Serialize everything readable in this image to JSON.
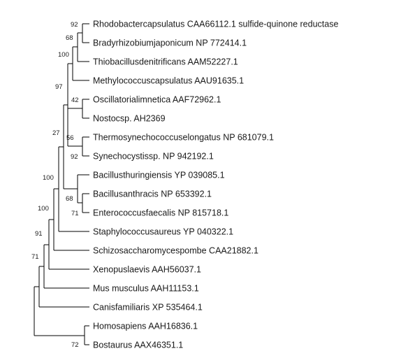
{
  "tree": {
    "taxa": [
      "Rhodobactercapsulatus CAA66112.1 sulfide-quinone reductase",
      "Bradyrhizobiumjaponicum NP 772414.1",
      "Thiobacillusdenitrificans AAM52227.1",
      "Methylococcuscapsulatus AAU91635.1",
      "Oscillatorialimnetica AAF72962.1",
      "Nostocsp. AH2369",
      "Thermosynechococcuselongatus NP 681079.1",
      "Synechocystissp. NP 942192.1",
      "Bacillusthuringiensis YP 039085.1",
      "Bacillusanthracis NP 653392.1",
      "Enterococcusfaecalis NP 815718.1",
      "Staphylococcusaureus YP 040322.1",
      "Schizosaccharomycespombe CAA21882.1",
      "Xenopuslaevis AAH56037.1",
      "Mus musculus AAH11153.1",
      "Canisfamiliaris XP 535464.1",
      "Homosapiens AAH16836.1",
      "Bostaurus AAX46351.1"
    ],
    "bootstrap": {
      "rhodo_brady": "92",
      "brady_thio": "68",
      "proteo": "100",
      "cyano_proteo": "97",
      "oscill_nostoc": "42",
      "thermo_syn": "56",
      "syn_pair": "92",
      "bacilli_cyano": "27",
      "bacillus_entero": "68",
      "anthracis_entero": "71",
      "staph": "100",
      "schizo": "100",
      "xenopus": "91",
      "mus": "71",
      "bostaurus": "72"
    }
  }
}
